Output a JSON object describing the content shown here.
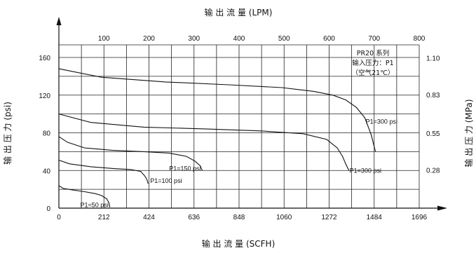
{
  "chart_data": {
    "type": "line",
    "top_axis_title": "输 出 流 量 (LPM)",
    "bottom_axis_title": "输 出 流 量 (SCFH)",
    "left_axis_title": "输 出 压 力 (psi)",
    "right_axis_title": "输 出 压 力 (MPa)",
    "x_bottom_ticks": [
      "0",
      "212",
      "424",
      "636",
      "848",
      "1060",
      "1272",
      "1484",
      "1696"
    ],
    "x_top_ticks": [
      "100",
      "200",
      "300",
      "400",
      "500",
      "600",
      "700",
      "800"
    ],
    "y_left_ticks": [
      "0",
      "40",
      "80",
      "120",
      "160"
    ],
    "y_right_ticks": [
      "0.28",
      "0.55",
      "0.83",
      "1.10"
    ],
    "xlim": [
      0,
      1696
    ],
    "ylim": [
      0,
      160
    ],
    "grid": true,
    "note": [
      "PR20 系列",
      "输入压力：P1",
      "（空气21℃）"
    ],
    "series": [
      {
        "name": "P1=50 psi",
        "x": [
          0,
          20,
          60,
          120,
          170,
          200,
          225,
          235,
          240
        ],
        "y": [
          24,
          21,
          19.5,
          17.5,
          15.5,
          13.5,
          10,
          6,
          1
        ]
      },
      {
        "name": "P1=100 psi",
        "x": [
          0,
          50,
          150,
          260,
          340,
          385,
          405,
          415,
          420
        ],
        "y": [
          51,
          47,
          44,
          42,
          41,
          39,
          34,
          30,
          26
        ]
      },
      {
        "name": "P1=150 psi",
        "x": [
          0,
          40,
          120,
          250,
          400,
          520,
          600,
          640,
          665,
          675
        ],
        "y": [
          76,
          70,
          64,
          61.5,
          60,
          58.5,
          55,
          50,
          45,
          40
        ]
      },
      {
        "name": "P1=300 psi",
        "label_pos": "upper",
        "x": [
          0,
          200,
          500,
          800,
          1050,
          1200,
          1290,
          1350,
          1400,
          1440,
          1470,
          1490
        ],
        "y": [
          148,
          139,
          134,
          131,
          128,
          124,
          120,
          115,
          107,
          96,
          78,
          60
        ]
      },
      {
        "name": "P1=300 psi",
        "label_pos": "lower",
        "x": [
          0,
          150,
          400,
          700,
          950,
          1150,
          1260,
          1310,
          1335,
          1350,
          1365
        ],
        "y": [
          100,
          91,
          86,
          84,
          82,
          79,
          73,
          64,
          55,
          47,
          40
        ]
      }
    ]
  }
}
